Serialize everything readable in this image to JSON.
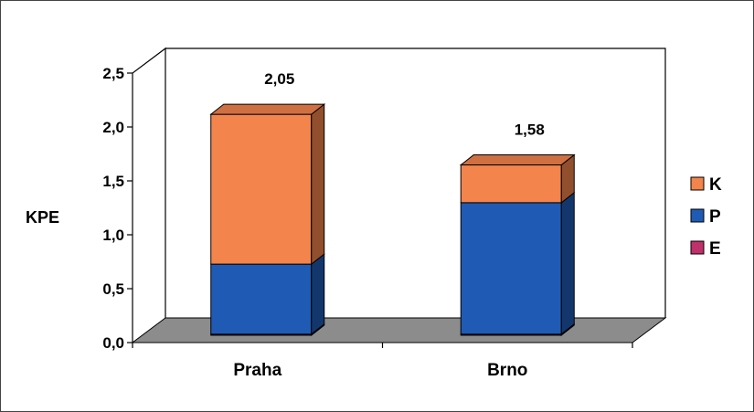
{
  "chart_data": {
    "type": "bar",
    "stacked": true,
    "three_d": true,
    "categories": [
      "Praha",
      "Brno"
    ],
    "series": [
      {
        "name": "E",
        "values": [
          0.01,
          0.01
        ],
        "color": "#C0306A"
      },
      {
        "name": "P",
        "values": [
          0.65,
          1.22
        ],
        "color": "#1F5BB5"
      },
      {
        "name": "K",
        "values": [
          1.39,
          0.35
        ],
        "color": "#F2844C"
      }
    ],
    "totals": [
      2.05,
      1.58
    ],
    "total_labels": [
      "2,05",
      "1,58"
    ],
    "ylabel": "KPE",
    "ylim": [
      0,
      2.5
    ],
    "yticks": [
      0,
      0.5,
      1.0,
      1.5,
      2.0,
      2.5
    ],
    "ytick_labels": [
      "0,0",
      "0,5",
      "1,0",
      "1,5",
      "2,0",
      "2,5"
    ],
    "legend": {
      "position": "right",
      "order": [
        "K",
        "P",
        "E"
      ]
    },
    "grid": false,
    "floor_color": "#8C8C8C"
  }
}
